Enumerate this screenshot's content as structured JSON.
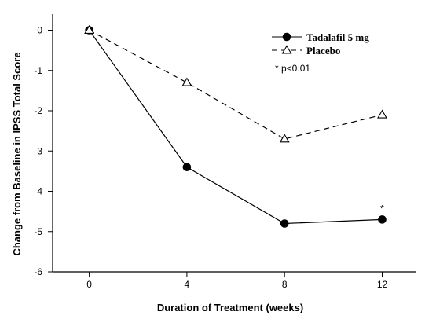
{
  "chart_data": {
    "type": "line",
    "title": "",
    "xlabel": "Duration of Treatment (weeks)",
    "ylabel": "Change from Baseline in IPSS Total Score",
    "x": [
      0,
      4,
      8,
      12
    ],
    "x_ticks": [
      0,
      4,
      8,
      12
    ],
    "y_ticks": [
      0,
      -1,
      -2,
      -3,
      -4,
      -5,
      -6
    ],
    "xlim": [
      -1.5,
      13.4
    ],
    "ylim": [
      -6,
      0.4
    ],
    "grid": false,
    "legend_position": "top-right",
    "series": [
      {
        "name": "Tadalafil 5 mg",
        "values": [
          0,
          -3.4,
          -4.8,
          -4.7
        ],
        "marker": "filled-circle",
        "line_style": "solid",
        "color": "#000000"
      },
      {
        "name": "Placebo",
        "values": [
          0,
          -1.3,
          -2.7,
          -2.1
        ],
        "marker": "open-triangle",
        "line_style": "dashed",
        "color": "#000000"
      }
    ],
    "annotations": [
      {
        "text": "* p<0.01",
        "kind": "legend-note"
      },
      {
        "text": "*",
        "series": "Tadalafil 5 mg",
        "x": 12,
        "y": -4.7
      }
    ]
  }
}
